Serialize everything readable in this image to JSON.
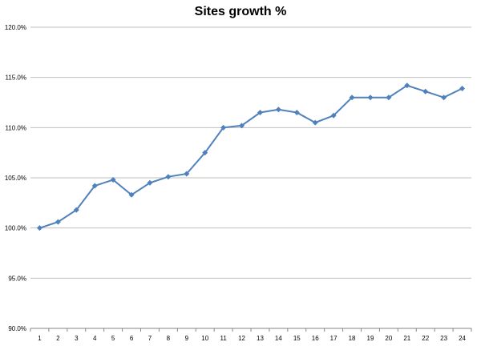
{
  "chart_data": {
    "type": "line",
    "title": "Sites growth %",
    "xlabel": "",
    "ylabel": "",
    "categories": [
      "1",
      "2",
      "3",
      "4",
      "5",
      "6",
      "7",
      "8",
      "9",
      "10",
      "11",
      "12",
      "13",
      "14",
      "15",
      "16",
      "17",
      "18",
      "19",
      "20",
      "21",
      "22",
      "23",
      "24"
    ],
    "series": [
      {
        "values": [
          100.0,
          100.6,
          101.8,
          104.2,
          104.8,
          103.3,
          104.5,
          105.1,
          105.4,
          107.5,
          110.0,
          110.2,
          111.5,
          111.8,
          111.5,
          110.5,
          111.2,
          113.0,
          113.0,
          113.0,
          114.2,
          113.6,
          113.0,
          113.9
        ],
        "color": "#4F81BD",
        "marker": "diamond"
      }
    ],
    "ylim": [
      90,
      120
    ],
    "yticks": [
      "90.0%",
      "95.0%",
      "100.0%",
      "105.0%",
      "110.0%",
      "115.0%",
      "120.0%"
    ],
    "ytick_values": [
      90,
      95,
      100,
      105,
      110,
      115,
      120
    ],
    "grid": true,
    "legend": "none"
  }
}
